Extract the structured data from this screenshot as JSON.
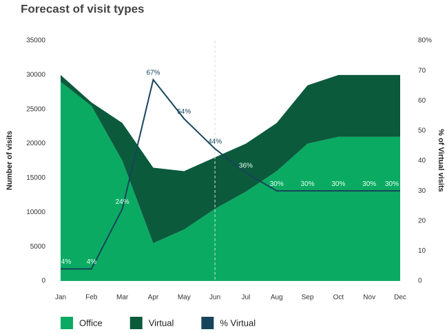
{
  "chart_data": {
    "type": "stacked_area_line",
    "title": "Forecast of visit types",
    "ylabel": "Number of visits",
    "y2label": "% of Virtual visits",
    "categories": [
      "Jan",
      "Feb",
      "Mar",
      "Apr",
      "May",
      "Jun",
      "Jul",
      "Aug",
      "Sep",
      "Oct",
      "Nov",
      "Dec"
    ],
    "series": [
      {
        "name": "Office",
        "color": "#0aaa63",
        "values": [
          29000,
          25500,
          17500,
          5500,
          7500,
          10500,
          13000,
          16000,
          20000,
          21000,
          21000,
          21000
        ]
      },
      {
        "name": "Virtual",
        "color": "#0b5a3c",
        "values": [
          1000,
          500,
          5500,
          11000,
          8500,
          7500,
          7000,
          7000,
          8500,
          9000,
          9000,
          9000
        ]
      },
      {
        "name": "% Virtual",
        "color": "#17445a",
        "axis": "y2",
        "values": [
          4,
          4,
          24,
          67,
          54,
          44,
          36,
          30,
          30,
          30,
          30,
          30
        ],
        "value_labels": [
          "4%",
          "4%",
          "24%",
          "67%",
          "54%",
          "44%",
          "36%",
          "30%",
          "30%",
          "30%",
          "30%",
          "30%"
        ]
      }
    ],
    "ylim": [
      0,
      35000
    ],
    "yticks": [
      0,
      5000,
      10000,
      15000,
      20000,
      25000,
      30000,
      35000
    ],
    "y2lim": [
      0,
      80
    ],
    "y2ticks": [
      0,
      10,
      20,
      30,
      40,
      50,
      60,
      70,
      {
        "value": 80,
        "label": "80%"
      }
    ],
    "legend": "bottom"
  }
}
